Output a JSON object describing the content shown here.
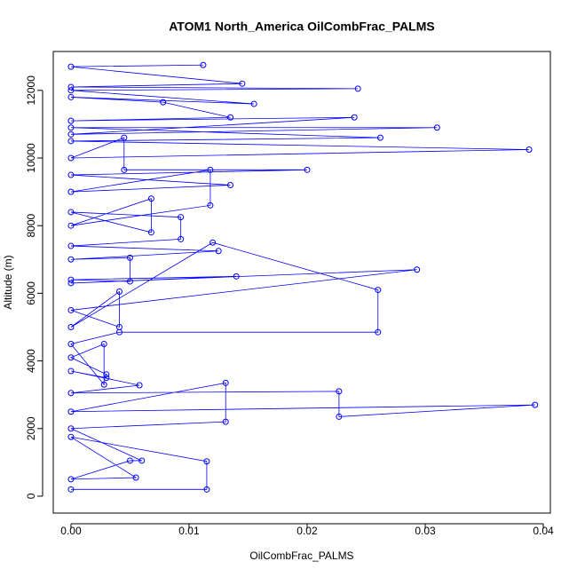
{
  "chart_data": {
    "type": "line",
    "title": "ATOM1 North_America OilCombFrac_PALMS",
    "xlabel": "OilCombFrac_PALMS",
    "ylabel": "Altitude (m)",
    "x": [
      0,
      0.0115,
      0.0115,
      0,
      0.0055,
      0,
      0.005,
      0.006,
      0,
      0.0131,
      0.0131,
      0,
      0.0393,
      0.0227,
      0.0227,
      0,
      0.0058,
      0,
      0.003,
      0.003,
      0,
      0.0028,
      0.0028,
      0,
      0.0041,
      0.026,
      0.026,
      0.012,
      0,
      0.0041,
      0.0041,
      0,
      0.0293,
      0,
      0.014,
      0,
      0.005,
      0.005,
      0,
      0.0125,
      0,
      0.0093,
      0.0093,
      0,
      0.0068,
      0.0068,
      0,
      0.0118,
      0.0118,
      0,
      0.0135,
      0,
      0.02,
      0.0045,
      0.0045,
      0,
      0.0388,
      0,
      0.0262,
      0,
      0.031,
      0,
      0.024,
      0,
      0.0135,
      0.0078,
      0,
      0.0155,
      0,
      0.0243,
      0,
      0.0145,
      0,
      0.0112
    ],
    "series": [
      {
        "color": "#0000ff",
        "values": [
          200,
          200,
          1030,
          1750,
          550,
          500,
          1050,
          1050,
          2000,
          2200,
          3350,
          2500,
          2700,
          2350,
          3100,
          3050,
          3280,
          3700,
          3500,
          3600,
          4100,
          4500,
          3300,
          4500,
          4850,
          4850,
          6100,
          7500,
          5000,
          6050,
          5000,
          5500,
          6700,
          6300,
          6500,
          6400,
          6350,
          7050,
          7000,
          7250,
          7400,
          7600,
          8250,
          8400,
          7800,
          8800,
          8000,
          8600,
          9650,
          9000,
          9200,
          9500,
          9650,
          9650,
          10600,
          10000,
          10250,
          10500,
          10600,
          10900,
          10900,
          10700,
          11200,
          11100,
          11200,
          11650,
          11800,
          11600,
          12000,
          12050,
          12100,
          12200,
          12700,
          12750
        ]
      }
    ],
    "xlim": [
      -0.0015,
      0.0406
    ],
    "ylim": [
      -500,
      13150
    ],
    "xticks": [
      {
        "value": 0,
        "label": "0.00"
      },
      0.01,
      0.02,
      0.03,
      0.04
    ],
    "yticks": [
      0,
      2000,
      4000,
      6000,
      8000,
      10000,
      12000
    ]
  }
}
